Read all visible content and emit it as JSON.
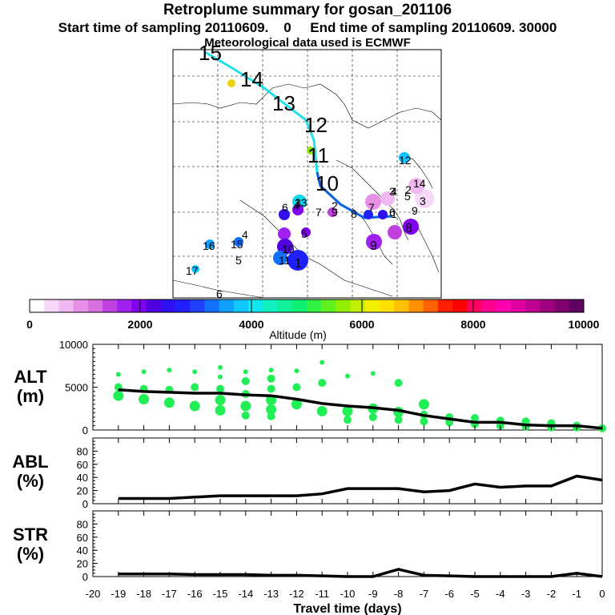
{
  "header": {
    "title": "Retroplume summary for gosan_201106",
    "sampling": "Start time of sampling 20110609.    0     End time of sampling 20110609. 30000",
    "met": "Meteorological data used is ECMWF"
  },
  "colorbar": {
    "ticks": [
      "0",
      "2000",
      "4000",
      "6000",
      "8000",
      "10000"
    ],
    "label": "Altitude (m)",
    "colors": [
      "#ffffff",
      "#f8d8f8",
      "#f0b8f0",
      "#e890e8",
      "#d870e0",
      "#c040e0",
      "#a020f0",
      "#8000f0",
      "#5000e0",
      "#3010f0",
      "#2020ff",
      "#2040ff",
      "#1070ff",
      "#10a0ff",
      "#10c8ff",
      "#10e8f0",
      "#10f0c0",
      "#10f098",
      "#10f070",
      "#30f040",
      "#60f020",
      "#90f000",
      "#c0f000",
      "#f0f000",
      "#ffe000",
      "#ffc000",
      "#ff9000",
      "#ff6000",
      "#ff2000",
      "#ff0000",
      "#ff0060",
      "#ff0090",
      "#ff00b0",
      "#e000a0",
      "#c00090",
      "#a00080",
      "#800070",
      "#600060"
    ]
  },
  "map": {
    "labels": [
      "15",
      "14",
      "13",
      "12",
      "11",
      "10",
      "9",
      "8",
      "7",
      "6",
      "5",
      "4",
      "3",
      "2",
      "1",
      "9",
      "8",
      "7",
      "6",
      "5",
      "4",
      "3",
      "2",
      "1",
      "6",
      "5",
      "4",
      "3",
      "17",
      "16",
      "15",
      "14",
      "13",
      "12",
      "11",
      "10",
      "9"
    ],
    "track_color_outer": "#20e0e8",
    "track_color_inner": "#1060e0"
  },
  "panels": {
    "alt": {
      "label1": "ALT",
      "label2": "(m)",
      "ticks": [
        "0",
        "5000",
        "10000"
      ]
    },
    "abl": {
      "label1": "ABL",
      "label2": "(%)",
      "ticks": [
        "0",
        "20",
        "40",
        "60",
        "80"
      ]
    },
    "str": {
      "label1": "STR",
      "label2": "(%)",
      "ticks": [
        "0",
        "20",
        "40",
        "60",
        "80"
      ]
    }
  },
  "chart_data": {
    "type": "line",
    "xlabel": "Travel time (days)",
    "xlim": [
      -20,
      0
    ],
    "x_ticks": [
      "-20",
      "-19",
      "-18",
      "-17",
      "-16",
      "-15",
      "-14",
      "-13",
      "-12",
      "-11",
      "-10",
      "-9",
      "-8",
      "-7",
      "-6",
      "-5",
      "-4",
      "-3",
      "-2",
      "-1",
      "0"
    ],
    "x": [
      -19,
      -18,
      -17,
      -16,
      -15,
      -14,
      -13,
      -12,
      -11,
      -10,
      -9,
      -8,
      -7,
      -6,
      -5,
      -4,
      -3,
      -2,
      -1,
      0
    ],
    "series": [
      {
        "name": "ALT",
        "ylabel": "ALT (m)",
        "ylim": [
          0,
          10000
        ],
        "values": [
          4700,
          4500,
          4400,
          4300,
          4300,
          4100,
          4000,
          3600,
          3100,
          2800,
          2600,
          2300,
          1700,
          1300,
          900,
          900,
          600,
          500,
          500,
          200
        ]
      },
      {
        "name": "ABL",
        "ylabel": "ABL (%)",
        "ylim": [
          0,
          100
        ],
        "values": [
          8,
          8,
          8,
          10,
          12,
          12,
          12,
          12,
          15,
          23,
          23,
          23,
          18,
          20,
          30,
          25,
          27,
          27,
          42,
          36
        ]
      },
      {
        "name": "STR",
        "ylabel": "STR (%)",
        "ylim": [
          0,
          100
        ],
        "values": [
          4,
          4,
          4,
          3,
          3,
          3,
          2,
          2,
          1,
          0,
          0,
          11,
          2,
          1,
          0,
          0,
          0,
          0,
          5,
          0
        ]
      }
    ],
    "alt_scatter": {
      "color": "#22ee55",
      "points": [
        [
          -19,
          6500
        ],
        [
          -19,
          5000
        ],
        [
          -19,
          4000
        ],
        [
          -18,
          6800
        ],
        [
          -18,
          4800
        ],
        [
          -18,
          3600
        ],
        [
          -17,
          7000
        ],
        [
          -17,
          4700
        ],
        [
          -17,
          3200
        ],
        [
          -16,
          6800
        ],
        [
          -16,
          5000
        ],
        [
          -16,
          2800
        ],
        [
          -15,
          7300
        ],
        [
          -15,
          6200
        ],
        [
          -15,
          4800
        ],
        [
          -15,
          3500
        ],
        [
          -15,
          2300
        ],
        [
          -14,
          6800
        ],
        [
          -14,
          5700
        ],
        [
          -14,
          4200
        ],
        [
          -14,
          2800
        ],
        [
          -14,
          1700
        ],
        [
          -13,
          7000
        ],
        [
          -13,
          6000
        ],
        [
          -13,
          4800
        ],
        [
          -13,
          3500
        ],
        [
          -13,
          2400
        ],
        [
          -13,
          1600
        ],
        [
          -12,
          6900
        ],
        [
          -12,
          5000
        ],
        [
          -12,
          3000
        ],
        [
          -11,
          7900
        ],
        [
          -11,
          5500
        ],
        [
          -11,
          2200
        ],
        [
          -10,
          6300
        ],
        [
          -10,
          2200
        ],
        [
          -10,
          1200
        ],
        [
          -9,
          6600
        ],
        [
          -9,
          2500
        ],
        [
          -9,
          1500
        ],
        [
          -8,
          5500
        ],
        [
          -8,
          2100
        ],
        [
          -8,
          1200
        ],
        [
          -7,
          3000
        ],
        [
          -7,
          1800
        ],
        [
          -7,
          1000
        ],
        [
          -6,
          1500
        ],
        [
          -6,
          900
        ],
        [
          -5,
          1400
        ],
        [
          -5,
          700
        ],
        [
          -4,
          1100
        ],
        [
          -4,
          500
        ],
        [
          -3,
          1000
        ],
        [
          -3,
          400
        ],
        [
          -2,
          800
        ],
        [
          -2,
          300
        ],
        [
          -1,
          500
        ],
        [
          -1,
          300
        ],
        [
          0,
          200
        ]
      ]
    }
  }
}
